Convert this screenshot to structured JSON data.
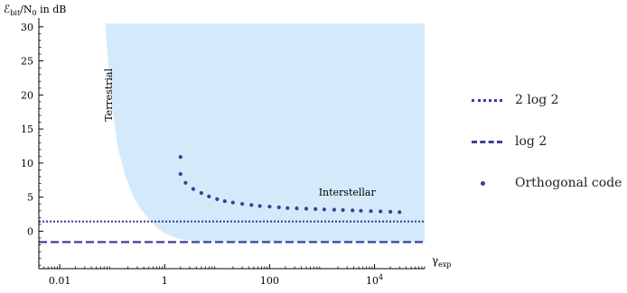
{
  "chart_data": {
    "type": "line",
    "ylabel_text": "ℰbit/N0 in dB",
    "ylabel_parts": {
      "main": "ℰ",
      "sub1": "bit",
      "mid": "/N",
      "sub2": "0",
      "rest": " in dB"
    },
    "xlabel_parts": {
      "main": "γ",
      "sub": "exp"
    },
    "x_scale": "log",
    "xlim": [
      0.004,
      90000
    ],
    "ylim": [
      -5.5,
      30.5
    ],
    "x_ticks": [
      {
        "value": 0.01,
        "label": "0.01"
      },
      {
        "value": 1,
        "label": "1"
      },
      {
        "value": 100,
        "label": "100"
      },
      {
        "value": 10000,
        "label": "10",
        "sup": "4"
      }
    ],
    "y_ticks": [
      0,
      5,
      10,
      15,
      20,
      25,
      30
    ],
    "colors": {
      "region": "#d4eafa",
      "series": "#3b3f9a",
      "axis": "#000000"
    },
    "region_boundary": {
      "x": [
        0.074,
        0.1,
        0.13,
        0.18,
        0.25,
        0.35,
        0.5,
        0.7,
        1.0,
        1.5,
        2.5,
        4,
        8,
        20,
        100,
        1000,
        10000,
        90000
      ],
      "y": [
        30,
        18,
        12,
        8,
        5.2,
        3.2,
        1.8,
        0.6,
        -0.3,
        -0.9,
        -1.3,
        -1.45,
        -1.55,
        -1.59,
        -1.59,
        -1.59,
        -1.59,
        -1.59
      ]
    },
    "annotations": [
      {
        "text": "Terrestrial",
        "x": 0.1,
        "y": 20,
        "rotate": -90
      },
      {
        "text": "Interstellar",
        "x": 3000,
        "y": 5.2,
        "rotate": 0
      }
    ],
    "series": [
      {
        "name": "2 log 2",
        "style": "dotted",
        "x": [
          0.004,
          90000
        ],
        "y": [
          1.42,
          1.42
        ]
      },
      {
        "name": "log 2",
        "style": "dashed",
        "x": [
          0.004,
          90000
        ],
        "y": [
          -1.59,
          -1.59
        ]
      },
      {
        "name": "Orthogonal code",
        "style": "points",
        "x": [
          2,
          2,
          2.5,
          3.5,
          5,
          7,
          10,
          14,
          20,
          30,
          45,
          65,
          100,
          150,
          220,
          330,
          500,
          750,
          1100,
          1700,
          2500,
          3800,
          5500,
          8500,
          13000,
          20000,
          30000
        ],
        "y": [
          10.9,
          8.4,
          7.1,
          6.2,
          5.6,
          5.1,
          4.7,
          4.4,
          4.2,
          4.0,
          3.85,
          3.7,
          3.6,
          3.5,
          3.4,
          3.35,
          3.3,
          3.25,
          3.2,
          3.15,
          3.1,
          3.05,
          3.0,
          2.95,
          2.9,
          2.85,
          2.8
        ]
      }
    ]
  },
  "legend": [
    {
      "label": "2 log 2",
      "style": "dotted"
    },
    {
      "label": "log 2",
      "style": "dashed"
    },
    {
      "label": "Orthogonal code",
      "style": "points"
    }
  ]
}
